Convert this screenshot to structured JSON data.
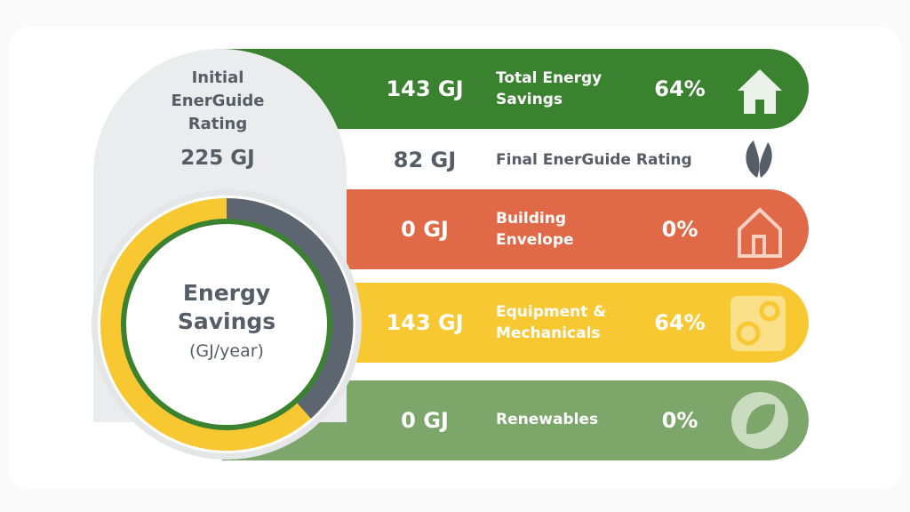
{
  "initial": {
    "title": "Initial EnerGuide Rating",
    "value": "225 GJ"
  },
  "center": {
    "title": "Energy Savings",
    "unit": "(GJ/year)"
  },
  "rows": [
    {
      "amount": "143 GJ",
      "label": "Total Energy Savings",
      "percent": "64%"
    },
    {
      "amount": "82 GJ",
      "label": "Final EnerGuide Rating"
    },
    {
      "amount": "0 GJ",
      "label": "Building Envelope",
      "percent": "0%"
    },
    {
      "amount": "143 GJ",
      "label": "Equipment & Mechanicals",
      "percent": "64%"
    },
    {
      "amount": "0 GJ",
      "label": "Renewables",
      "percent": "0%"
    }
  ]
}
